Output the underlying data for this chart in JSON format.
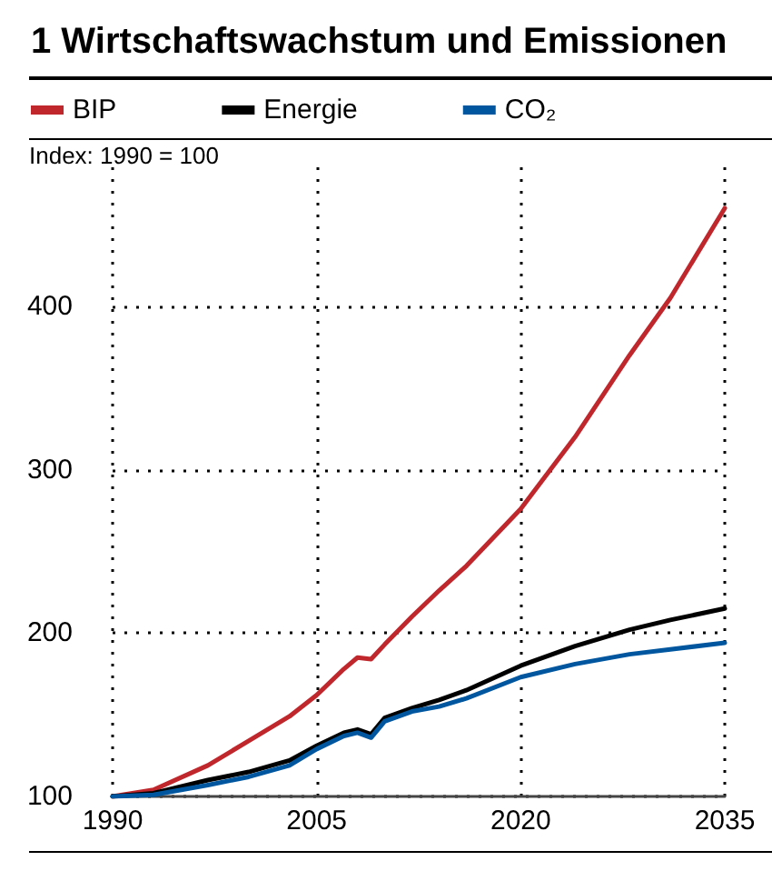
{
  "chart_data": {
    "type": "line",
    "title": "1 Wirtschaftswachstum und Emissionen",
    "ylabel": "Index: 1990 = 100",
    "x": [
      1990,
      1993,
      1997,
      2000,
      2003,
      2005,
      2007,
      2008,
      2009,
      2010,
      2012,
      2014,
      2016,
      2020,
      2024,
      2028,
      2031,
      2035
    ],
    "series": [
      {
        "name": "BIP",
        "color": "#c0272d",
        "values": [
          100,
          104,
          119,
          134,
          149,
          162,
          178,
          185,
          184,
          193,
          210,
          226,
          241,
          276,
          320,
          370,
          405,
          460
        ]
      },
      {
        "name": "Energie",
        "color": "#000000",
        "values": [
          100,
          102,
          110,
          115,
          122,
          131,
          139,
          141,
          138,
          148,
          154,
          159,
          165,
          180,
          192,
          202,
          208,
          215
        ]
      },
      {
        "name": "CO₂",
        "color": "#0057a0",
        "values": [
          100,
          101,
          107,
          112,
          119,
          129,
          137,
          139,
          136,
          146,
          152,
          155,
          160,
          173,
          181,
          187,
          190,
          194
        ]
      }
    ],
    "xlim": [
      1990,
      2035
    ],
    "xticks": [
      1990,
      2005,
      2020,
      2035
    ],
    "ylim": [
      100,
      485
    ],
    "yticks": [
      100,
      200,
      300,
      400
    ],
    "grid": true,
    "legend": "top left",
    "marker": "none",
    "line_style": "solid"
  }
}
